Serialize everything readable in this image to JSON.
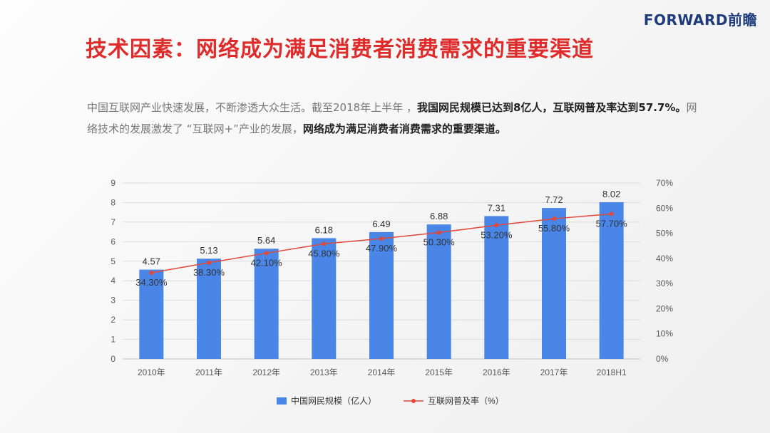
{
  "brand": "FORWARD前瞻",
  "title": "技术因素：网络成为满足消费者消费需求的重要渠道",
  "paragraph": [
    {
      "text": "中国互联网产业快速发展，不断渗透大众生活。截至2018年上半年 ，",
      "bold": false
    },
    {
      "text": "我国网民规模已达到8亿人，互联网普及率达到57.7%。",
      "bold": true
    },
    {
      "text": "网络技术的发展激发了 “互联网+”产业的发展，",
      "bold": false
    },
    {
      "text": "网络成为满足消费者消费需求的重要渠道。",
      "bold": true
    }
  ],
  "chart_data": {
    "type": "bar",
    "categories": [
      "2010年",
      "2011年",
      "2012年",
      "2013年",
      "2014年",
      "2015年",
      "2016年",
      "2017年",
      "2018H1"
    ],
    "series": [
      {
        "name": "中国网民规模（亿人）",
        "type": "bar",
        "axis": "left",
        "values": [
          4.57,
          5.13,
          5.64,
          6.18,
          6.49,
          6.88,
          7.31,
          7.72,
          8.02
        ],
        "labels": [
          "4.57",
          "5.13",
          "5.64",
          "6.18",
          "6.49",
          "6.88",
          "7.31",
          "7.72",
          "8.02"
        ],
        "color": "#4a86e8"
      },
      {
        "name": "互联网普及率（%）",
        "type": "line",
        "axis": "right",
        "values": [
          34.3,
          38.3,
          42.1,
          45.8,
          47.9,
          50.3,
          53.2,
          55.8,
          57.7
        ],
        "labels": [
          "34.30%",
          "38.30%",
          "42.10%",
          "45.80%",
          "47.90%",
          "50.30%",
          "53.20%",
          "55.80%",
          "57.70%"
        ],
        "color": "#e0483a"
      }
    ],
    "y_left": {
      "min": 0,
      "max": 9,
      "ticks": [
        "0",
        "1",
        "2",
        "3",
        "4",
        "5",
        "6",
        "7",
        "8",
        "9"
      ]
    },
    "y_right": {
      "min": 0,
      "max": 70,
      "ticks": [
        "0%",
        "10%",
        "20%",
        "30%",
        "40%",
        "50%",
        "60%",
        "70%"
      ]
    },
    "grid": true,
    "legend": "bottom"
  }
}
